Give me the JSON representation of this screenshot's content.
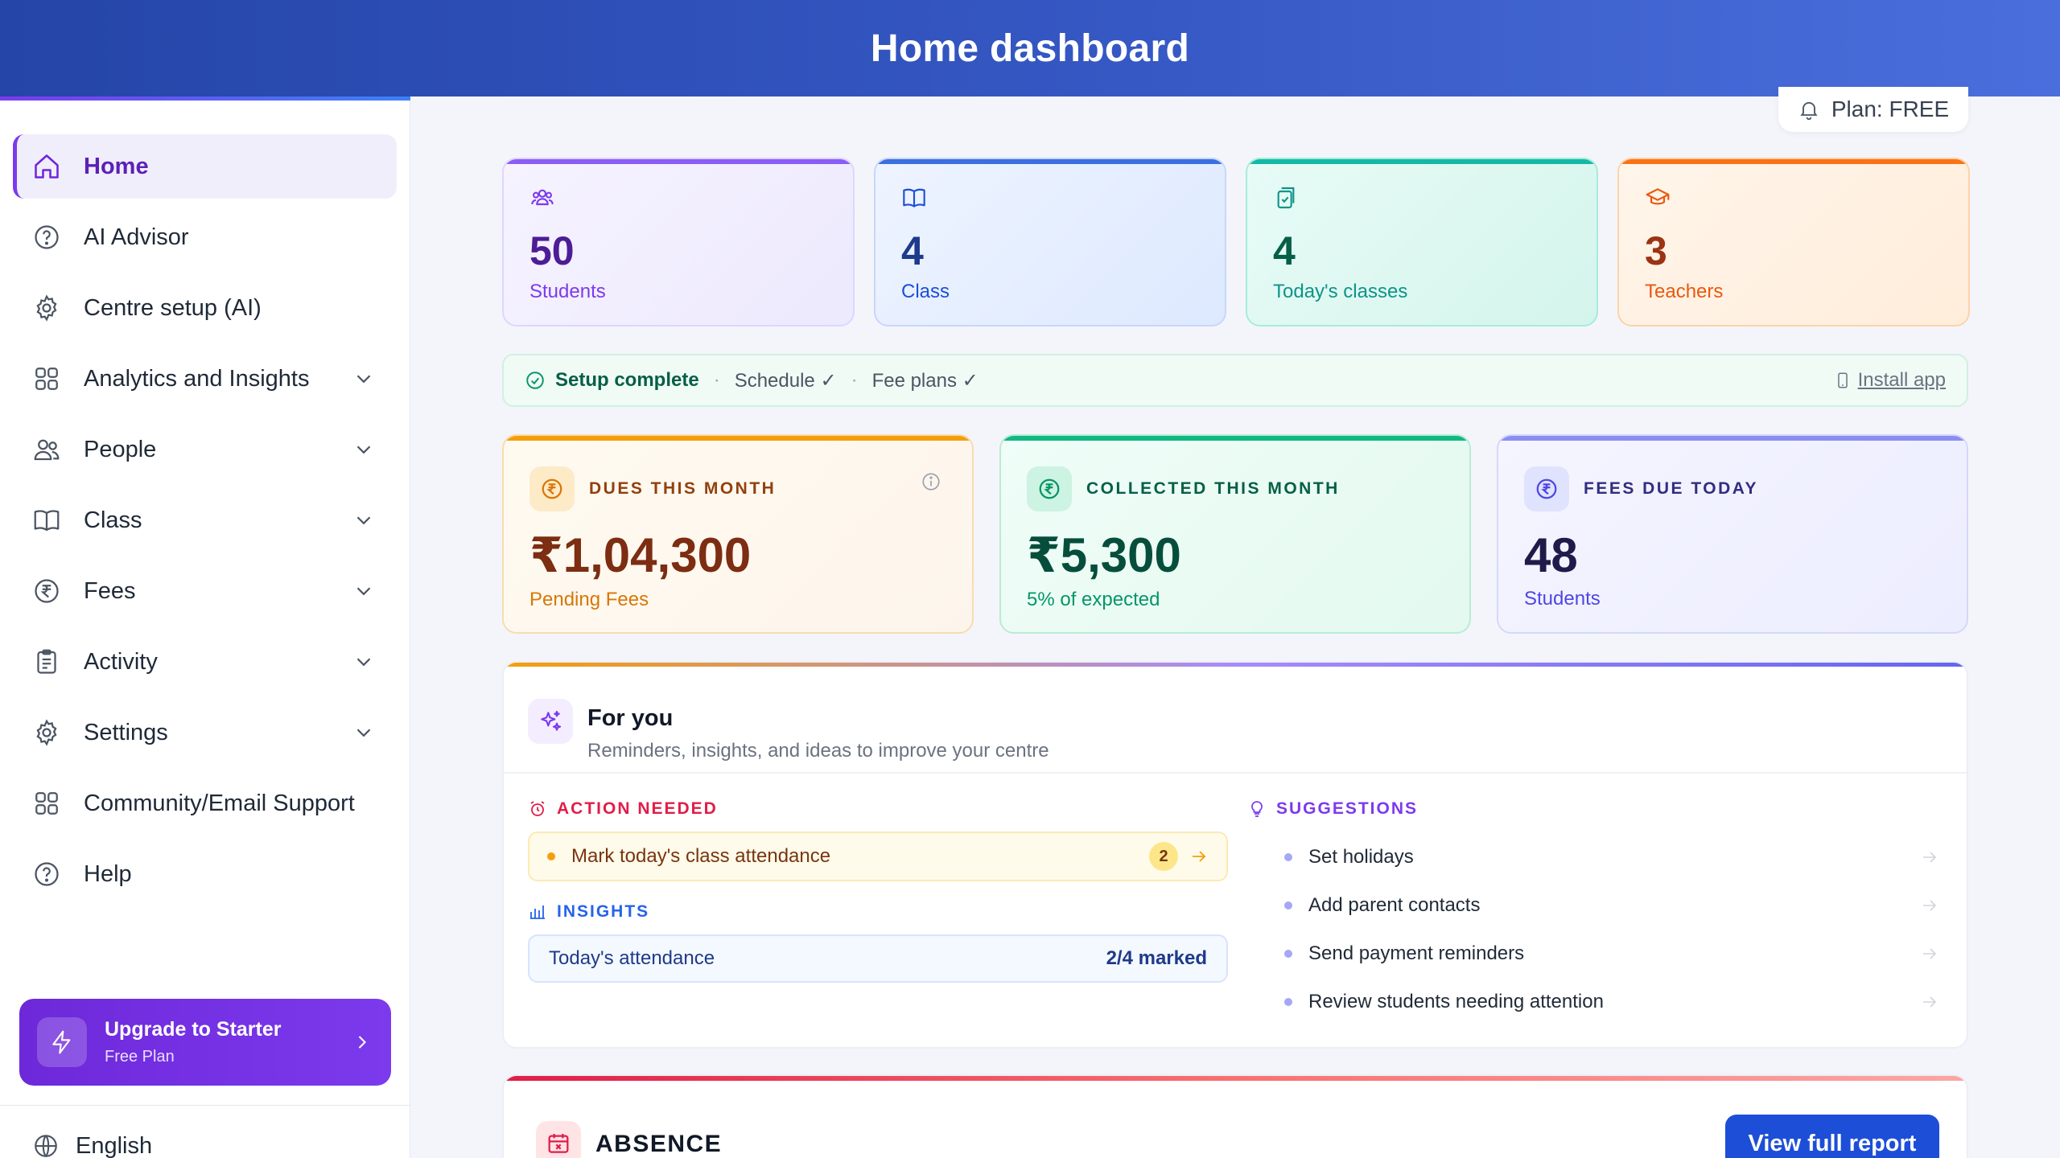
{
  "header": {
    "title": "Home dashboard"
  },
  "sidebar": {
    "items": [
      {
        "label": "Home",
        "icon": "home-icon",
        "active": true
      },
      {
        "label": "AI Advisor",
        "icon": "question-circle-icon"
      },
      {
        "label": "Centre setup (AI)",
        "icon": "gear-icon"
      },
      {
        "label": "Analytics and Insights",
        "icon": "grid-icon",
        "expandable": true
      },
      {
        "label": "People",
        "icon": "users-icon",
        "expandable": true
      },
      {
        "label": "Class",
        "icon": "book-icon",
        "expandable": true
      },
      {
        "label": "Fees",
        "icon": "rupee-circle-icon",
        "expandable": true
      },
      {
        "label": "Activity",
        "icon": "clipboard-icon",
        "expandable": true
      },
      {
        "label": "Settings",
        "icon": "gear-icon",
        "expandable": true
      },
      {
        "label": "Community/Email Support",
        "icon": "grid-icon"
      },
      {
        "label": "Help",
        "icon": "question-circle-icon"
      }
    ],
    "upgrade": {
      "title": "Upgrade to Starter",
      "subtitle": "Free Plan"
    },
    "language": "English"
  },
  "plan": {
    "label": "Plan: FREE"
  },
  "stats": [
    {
      "value": "50",
      "label": "Students",
      "icon": "users-icon"
    },
    {
      "value": "4",
      "label": "Class",
      "icon": "book-icon"
    },
    {
      "value": "4",
      "label": "Today's classes",
      "icon": "clipboard-check-icon"
    },
    {
      "value": "3",
      "label": "Teachers",
      "icon": "graduation-cap-icon"
    }
  ],
  "setup": {
    "status": "Setup complete",
    "items": [
      "Schedule ✓",
      "Fee plans ✓"
    ],
    "install": "Install app"
  },
  "fees": [
    {
      "title": "DUES THIS MONTH",
      "value": "₹1,04,300",
      "sub": "Pending Fees"
    },
    {
      "title": "COLLECTED THIS MONTH",
      "value": "₹5,300",
      "sub": "5% of expected"
    },
    {
      "title": "FEES DUE TODAY",
      "value": "48",
      "sub": "Students"
    }
  ],
  "for_you": {
    "title": "For you",
    "subtitle": "Reminders, insights, and ideas to improve your centre",
    "action_label": "ACTION NEEDED",
    "action": {
      "text": "Mark today's class attendance",
      "count": "2"
    },
    "insights_label": "INSIGHTS",
    "insight": {
      "text": "Today's attendance",
      "value": "2/4 marked"
    },
    "suggestions_label": "SUGGESTIONS",
    "suggestions": [
      "Set holidays",
      "Add parent contacts",
      "Send payment reminders",
      "Review students needing attention"
    ]
  },
  "absence": {
    "title": "ABSENCE",
    "button": "View full report"
  },
  "colors": {
    "primary": "#1d4ed8",
    "accent": "#7c3aed",
    "header": "#2f4fb8"
  }
}
